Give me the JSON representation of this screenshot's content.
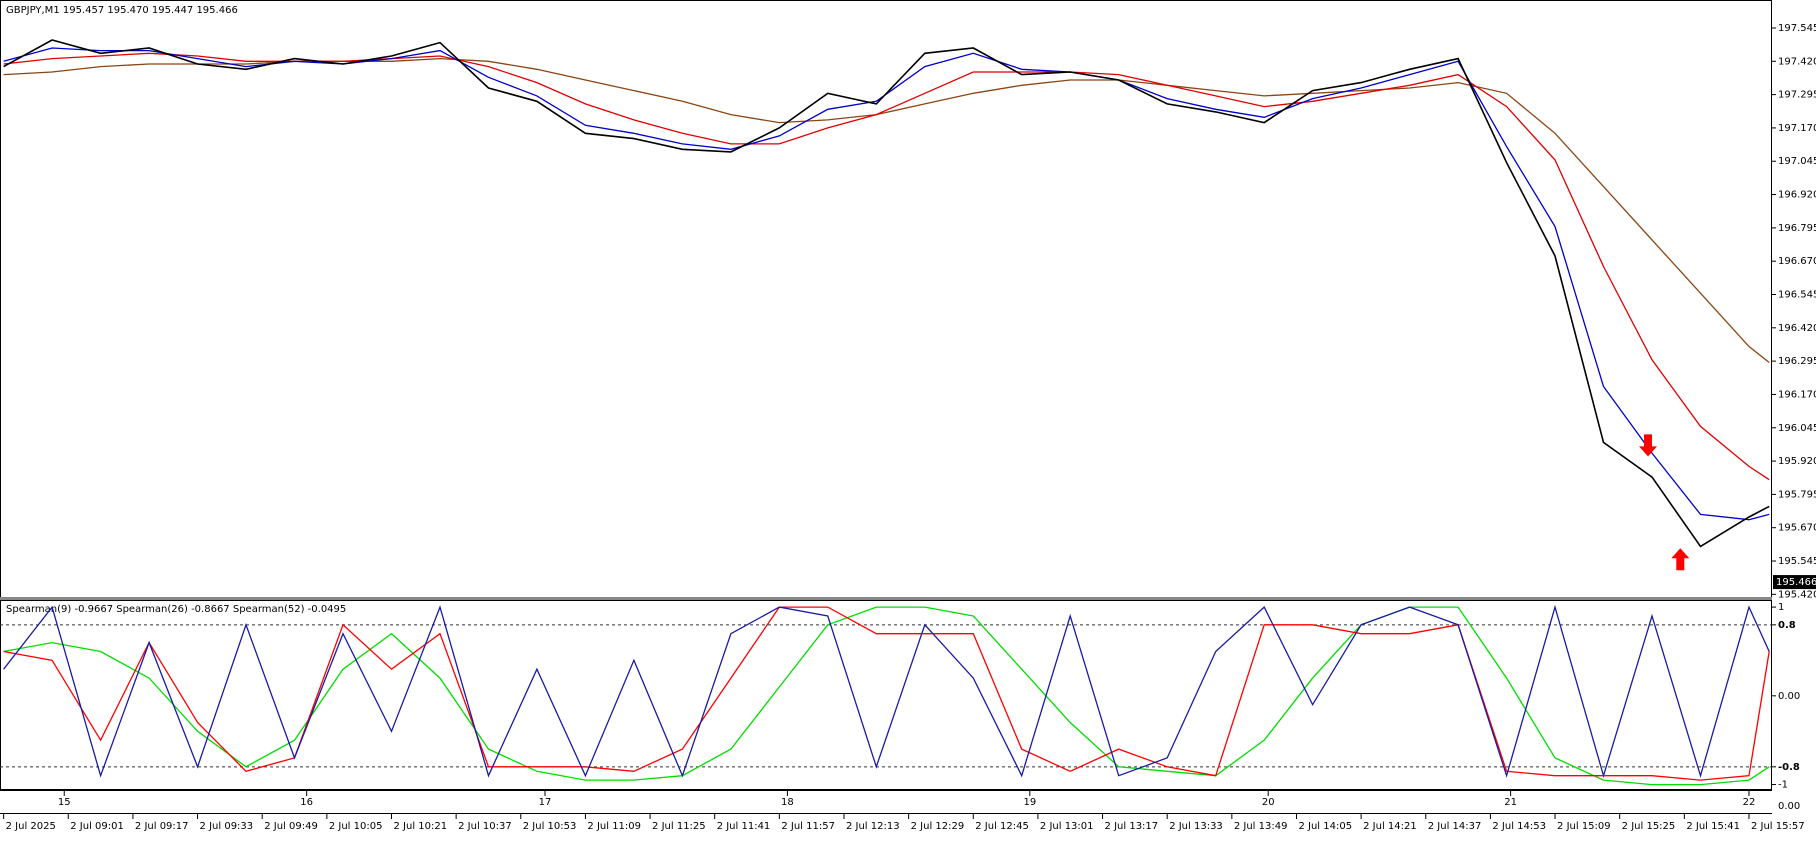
{
  "chart_data": [
    {
      "type": "line",
      "title": "GBPJPY,M1  195.457 195.470 195.447 195.466",
      "x": [
        0,
        12,
        24,
        36,
        48,
        60,
        72,
        84,
        96,
        108,
        120,
        132,
        144,
        156,
        168,
        180,
        192,
        204,
        216,
        228,
        240,
        252,
        264,
        276,
        288,
        300,
        312,
        324,
        336,
        348,
        360,
        372,
        384,
        396,
        408,
        420,
        432,
        437
      ],
      "xlim": [
        -0.9,
        437.7
      ],
      "ylim": [
        195.41,
        197.65
      ],
      "yticks": [
        197.545,
        {
          "value": 197.42,
          "label": "197.420"
        },
        197.295,
        {
          "value": 197.17,
          "label": "197.170"
        },
        197.045,
        {
          "value": 196.92,
          "label": "196.920"
        },
        196.795,
        {
          "value": 196.67,
          "label": "196.670"
        },
        196.545,
        {
          "value": 196.42,
          "label": "196.420"
        },
        196.295,
        {
          "value": 196.17,
          "label": "196.170"
        },
        196.045,
        {
          "value": 195.92,
          "label": "195.920"
        },
        195.795,
        {
          "value": 195.67,
          "label": "195.670"
        },
        195.545,
        {
          "value": 195.42,
          "label": "195.420"
        }
      ],
      "last_price": 195.466,
      "series": [
        {
          "color": "#8b4513",
          "values": [
            197.37,
            197.38,
            197.4,
            197.41,
            197.41,
            197.41,
            197.42,
            197.42,
            197.42,
            197.43,
            197.42,
            197.39,
            197.35,
            197.31,
            197.27,
            197.22,
            197.19,
            197.2,
            197.22,
            197.26,
            197.3,
            197.33,
            197.35,
            197.35,
            197.33,
            197.31,
            197.29,
            197.3,
            197.31,
            197.32,
            197.34,
            197.3,
            197.15,
            196.95,
            196.75,
            196.55,
            196.35,
            196.29
          ]
        },
        {
          "color": "#e00000",
          "values": [
            197.41,
            197.43,
            197.44,
            197.45,
            197.44,
            197.42,
            197.42,
            197.42,
            197.43,
            197.44,
            197.4,
            197.34,
            197.26,
            197.2,
            197.15,
            197.11,
            197.11,
            197.17,
            197.22,
            197.3,
            197.38,
            197.38,
            197.38,
            197.37,
            197.33,
            197.29,
            197.25,
            197.27,
            197.3,
            197.33,
            197.37,
            197.25,
            197.05,
            196.65,
            196.3,
            196.05,
            195.9,
            195.85
          ]
        },
        {
          "color": "#0000cc",
          "values": [
            197.42,
            197.47,
            197.46,
            197.46,
            197.43,
            197.4,
            197.42,
            197.41,
            197.43,
            197.46,
            197.36,
            197.29,
            197.18,
            197.15,
            197.11,
            197.09,
            197.14,
            197.24,
            197.27,
            197.4,
            197.45,
            197.39,
            197.38,
            197.35,
            197.28,
            197.24,
            197.21,
            197.28,
            197.32,
            197.37,
            197.42,
            197.1,
            196.8,
            196.2,
            195.95,
            195.72,
            195.7,
            195.72
          ]
        },
        {
          "color": "#000000",
          "values": [
            197.4,
            197.5,
            197.45,
            197.47,
            197.41,
            197.39,
            197.43,
            197.41,
            197.44,
            197.49,
            197.32,
            197.27,
            197.15,
            197.13,
            197.09,
            197.08,
            197.17,
            197.3,
            197.26,
            197.45,
            197.47,
            197.37,
            197.38,
            197.35,
            197.26,
            197.23,
            197.19,
            197.31,
            197.34,
            197.39,
            197.43,
            197.04,
            196.69,
            195.99,
            195.86,
            195.6,
            195.71,
            195.75
          ]
        }
      ],
      "signals": [
        {
          "direction": "down",
          "x": 407,
          "value": 196.02
        },
        {
          "direction": "up",
          "x": 415,
          "value": 195.51
        }
      ]
    },
    {
      "type": "line",
      "title": "Spearman(9) -0.9667  Spearman(26) -0.8667  Spearman(52) -0.0495",
      "x": [
        0,
        12,
        24,
        36,
        48,
        60,
        72,
        84,
        96,
        108,
        120,
        132,
        144,
        156,
        168,
        180,
        192,
        204,
        216,
        228,
        240,
        252,
        264,
        276,
        288,
        300,
        312,
        324,
        336,
        348,
        360,
        372,
        384,
        396,
        408,
        420,
        432,
        437
      ],
      "xlim": [
        -0.9,
        437.7
      ],
      "ylim": [
        -1.05,
        1.08
      ],
      "yticks": [
        1,
        0.8,
        {
          "value": 0,
          "label": "0.00"
        },
        -0.8,
        -1
      ],
      "levels": [
        0.8,
        -0.8
      ],
      "series": [
        {
          "color": "#00dd00",
          "values": [
            0.5,
            0.6,
            0.5,
            0.2,
            -0.4,
            -0.8,
            -0.5,
            0.3,
            0.7,
            0.2,
            -0.6,
            -0.85,
            -0.95,
            -0.95,
            -0.9,
            -0.6,
            0.1,
            0.8,
            1.0,
            1.0,
            0.9,
            0.3,
            -0.3,
            -0.8,
            -0.85,
            -0.9,
            -0.5,
            0.2,
            0.8,
            1.0,
            1.0,
            0.2,
            -0.7,
            -0.95,
            -1.0,
            -1.0,
            -0.95,
            -0.8
          ]
        },
        {
          "color": "#ff0000",
          "values": [
            0.5,
            0.4,
            -0.5,
            0.6,
            -0.3,
            -0.85,
            -0.7,
            0.8,
            0.3,
            0.7,
            -0.8,
            -0.8,
            -0.8,
            -0.85,
            -0.6,
            0.2,
            1.0,
            1.0,
            0.7,
            0.7,
            0.7,
            -0.6,
            -0.85,
            -0.6,
            -0.8,
            -0.9,
            0.8,
            0.8,
            0.7,
            0.7,
            0.8,
            -0.85,
            -0.9,
            -0.9,
            -0.9,
            -0.95,
            -0.9,
            0.5
          ]
        },
        {
          "color": "#1a1aa6",
          "values": [
            0.3,
            1.0,
            -0.9,
            0.6,
            -0.8,
            0.8,
            -0.7,
            0.7,
            -0.4,
            1.0,
            -0.9,
            0.3,
            -0.9,
            0.4,
            -0.9,
            0.7,
            1.0,
            0.9,
            -0.8,
            0.8,
            0.2,
            -0.9,
            0.9,
            -0.9,
            -0.7,
            0.5,
            1.0,
            -0.1,
            0.8,
            1.0,
            0.8,
            -0.9,
            1.0,
            -0.9,
            0.9,
            -0.9,
            1.0,
            0.5
          ]
        }
      ],
      "day_ticks": [
        {
          "value": 15,
          "label": "15"
        },
        {
          "value": 75,
          "label": "16"
        },
        {
          "value": 134,
          "label": "17"
        },
        {
          "value": 194,
          "label": "18"
        },
        {
          "value": 254,
          "label": "19"
        },
        {
          "value": 313,
          "label": "20"
        },
        {
          "value": 373,
          "label": "21"
        },
        {
          "value": 432,
          "label": "22"
        }
      ],
      "day_axis_label": "0.00",
      "xticks": [
        {
          "value": 0,
          "label": "2 Jul 2025"
        },
        {
          "value": 16,
          "label": "2 Jul 09:01"
        },
        {
          "value": 32,
          "label": "2 Jul 09:17"
        },
        {
          "value": 48,
          "label": "2 Jul 09:33"
        },
        {
          "value": 64,
          "label": "2 Jul 09:49"
        },
        {
          "value": 80,
          "label": "2 Jul 10:05"
        },
        {
          "value": 96,
          "label": "2 Jul 10:21"
        },
        {
          "value": 112,
          "label": "2 Jul 10:37"
        },
        {
          "value": 128,
          "label": "2 Jul 10:53"
        },
        {
          "value": 144,
          "label": "2 Jul 11:09"
        },
        {
          "value": 160,
          "label": "2 Jul 11:25"
        },
        {
          "value": 176,
          "label": "2 Jul 11:41"
        },
        {
          "value": 192,
          "label": "2 Jul 11:57"
        },
        {
          "value": 208,
          "label": "2 Jul 12:13"
        },
        {
          "value": 224,
          "label": "2 Jul 12:29"
        },
        {
          "value": 240,
          "label": "2 Jul 12:45"
        },
        {
          "value": 256,
          "label": "2 Jul 13:01"
        },
        {
          "value": 272,
          "label": "2 Jul 13:17"
        },
        {
          "value": 288,
          "label": "2 Jul 13:33"
        },
        {
          "value": 304,
          "label": "2 Jul 13:49"
        },
        {
          "value": 320,
          "label": "2 Jul 14:05"
        },
        {
          "value": 336,
          "label": "2 Jul 14:21"
        },
        {
          "value": 352,
          "label": "2 Jul 14:37"
        },
        {
          "value": 368,
          "label": "2 Jul 14:53"
        },
        {
          "value": 384,
          "label": "2 Jul 15:09"
        },
        {
          "value": 400,
          "label": "2 Jul 15:25"
        },
        {
          "value": 416,
          "label": "2 Jul 15:41"
        },
        {
          "value": 432,
          "label": "2 Jul 15:57"
        }
      ]
    }
  ]
}
